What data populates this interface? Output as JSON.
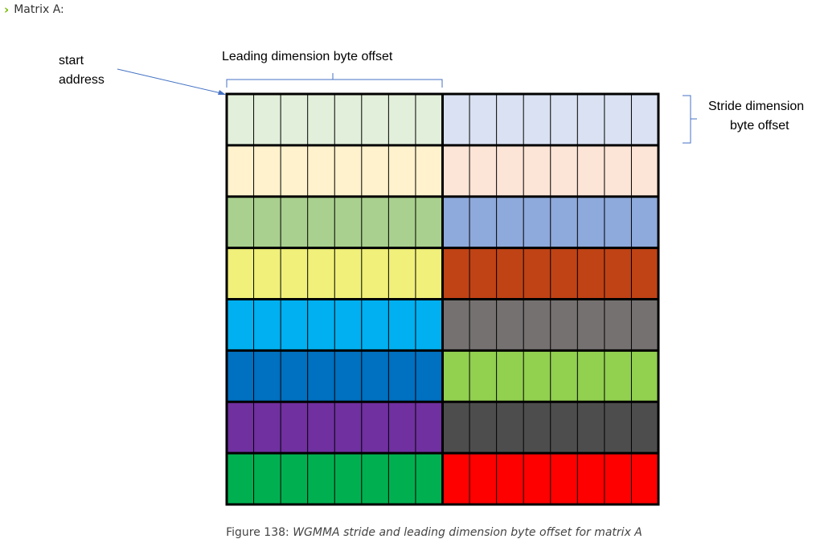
{
  "header": {
    "label": "Matrix A:"
  },
  "labels": {
    "start_line1": "start",
    "start_line2": "address",
    "leading": "Leading dimension byte offset",
    "stride_line1": "Stride dimension",
    "stride_line2": "byte offset"
  },
  "caption": {
    "number": "Figure 138:",
    "text": "WGMMA stride and leading dimension byte offset for matrix A"
  },
  "matrix": {
    "cols_per_block": 8,
    "rows": [
      {
        "left": "#e2efda",
        "right": "#d9e1f2"
      },
      {
        "left": "#fff2cc",
        "right": "#fce4d6"
      },
      {
        "left": "#a9d08e",
        "right": "#8ea9db"
      },
      {
        "left": "#f0f07a",
        "right": "#c04315"
      },
      {
        "left": "#00b0f0",
        "right": "#767171"
      },
      {
        "left": "#0070c0",
        "right": "#92d050"
      },
      {
        "left": "#7030a0",
        "right": "#4d4d4d"
      },
      {
        "left": "#00b050",
        "right": "#ff0000"
      }
    ]
  },
  "colors": {
    "arrow": "#4472c4",
    "bracket": "#4472c4",
    "accent": "#76b900"
  }
}
